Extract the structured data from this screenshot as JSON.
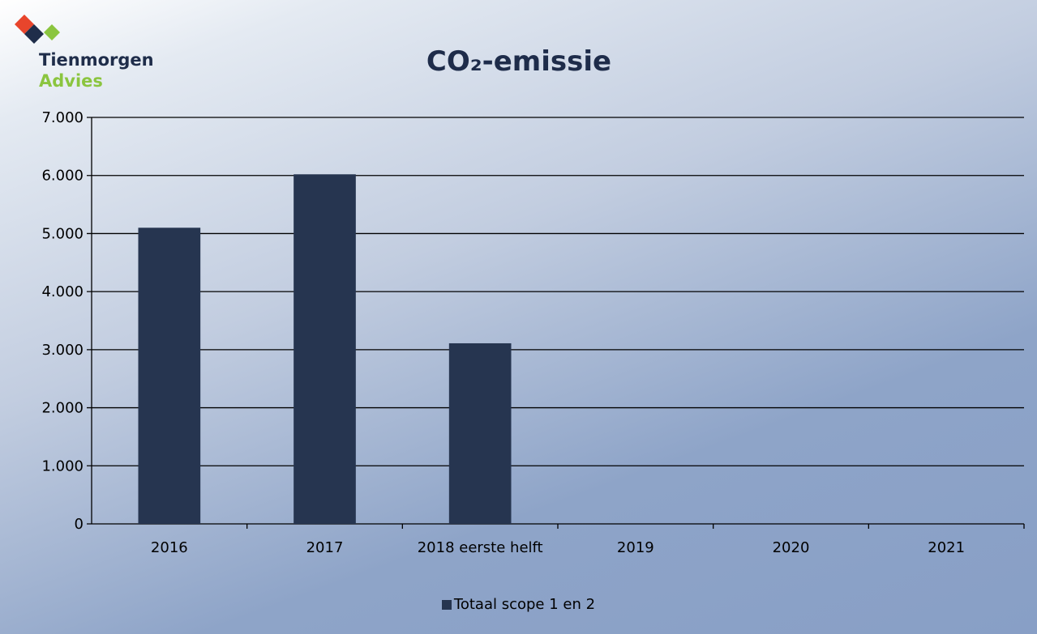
{
  "logo": {
    "line1": "Tienmorgen",
    "line2": "Advies",
    "colors": {
      "diamond_red": "#e8452c",
      "diamond_navy": "#1f2d4a",
      "diamond_green": "#8bc53f"
    }
  },
  "chart_data": {
    "type": "bar",
    "title": "CO₂-emissie",
    "xlabel": "",
    "ylabel": "",
    "categories": [
      "2016",
      "2017",
      "2018 eerste helft",
      "2019",
      "2020",
      "2021"
    ],
    "series": [
      {
        "name": "Totaal scope 1 en 2",
        "values": [
          5100,
          6020,
          3110,
          null,
          null,
          null
        ],
        "color": "#263550"
      }
    ],
    "ylim": [
      0,
      7000
    ],
    "yticks": [
      0,
      1000,
      2000,
      3000,
      4000,
      5000,
      6000,
      7000
    ],
    "ytick_labels": [
      "0",
      "1.000",
      "2.000",
      "3.000",
      "4.000",
      "5.000",
      "6.000",
      "7.000"
    ],
    "grid": true,
    "legend_position": "bottom"
  }
}
